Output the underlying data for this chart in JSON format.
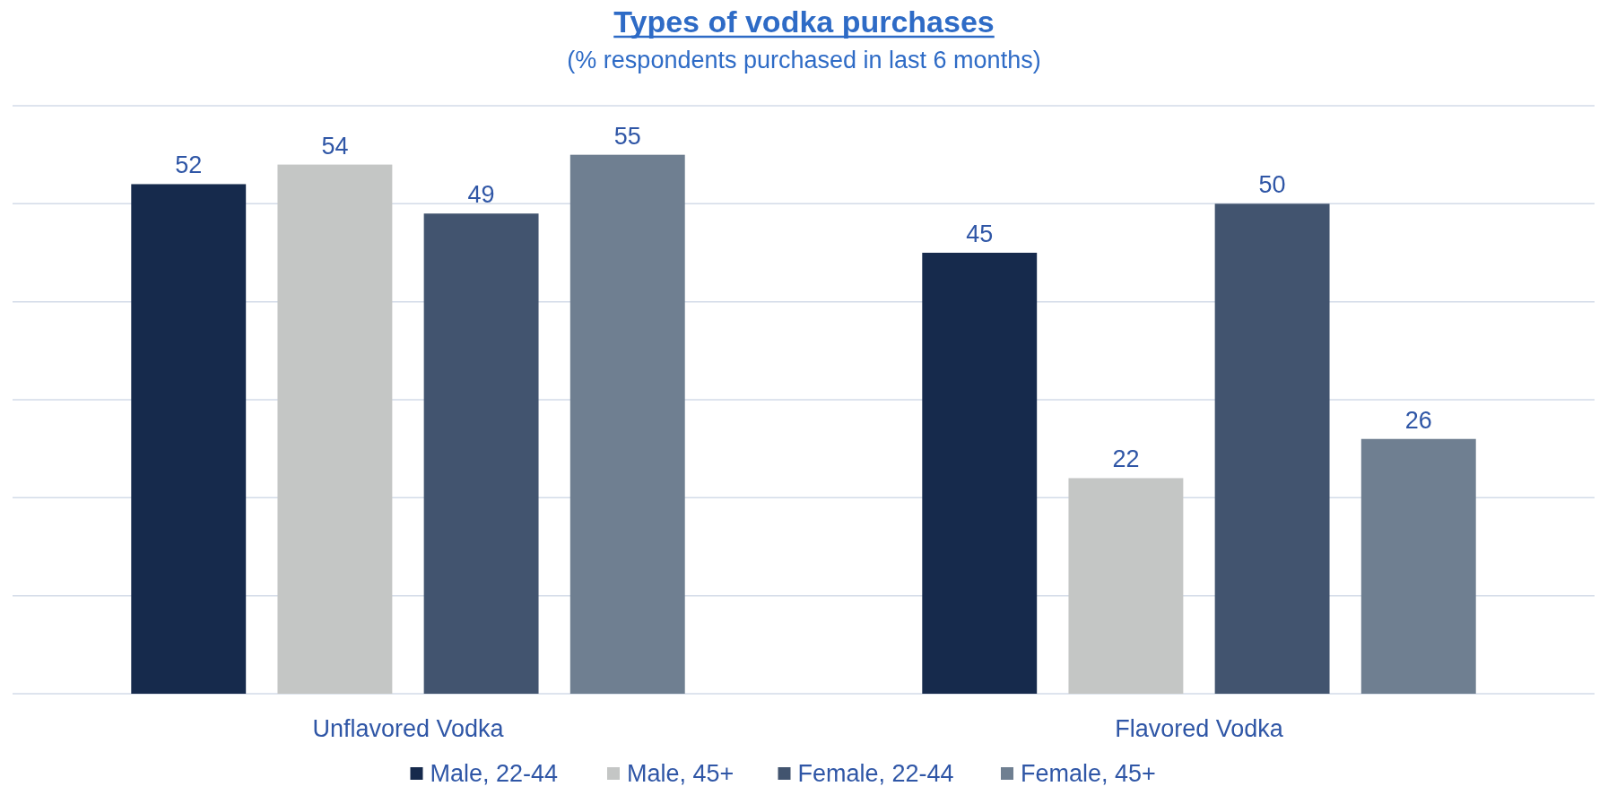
{
  "chart_data": {
    "type": "bar",
    "title": "Types of vodka purchases",
    "subtitle": "(% respondents purchased in last 6 months)",
    "categories": [
      "Unflavored Vodka",
      "Flavored Vodka"
    ],
    "series": [
      {
        "name": "Male, 22-44",
        "color": "#162a4c",
        "values": [
          52,
          45
        ]
      },
      {
        "name": "Male, 45+",
        "color": "#c4c6c5",
        "values": [
          54,
          22
        ]
      },
      {
        "name": "Female, 22-44",
        "color": "#42546f",
        "values": [
          49,
          50
        ]
      },
      {
        "name": "Female, 45+",
        "color": "#6f7f91",
        "values": [
          55,
          26
        ]
      }
    ],
    "ylim": [
      0,
      60
    ],
    "yticks": [
      {
        "value": 0,
        "label": null
      },
      {
        "value": 10,
        "label": null
      },
      {
        "value": 20,
        "label": null
      },
      {
        "value": 30,
        "label": null
      },
      {
        "value": 40,
        "label": null
      },
      {
        "value": 50,
        "label": null
      },
      {
        "value": 60,
        "label": null
      }
    ],
    "grid": "y",
    "legend": "bottom",
    "data_labels": true,
    "tick_labels": "x"
  }
}
